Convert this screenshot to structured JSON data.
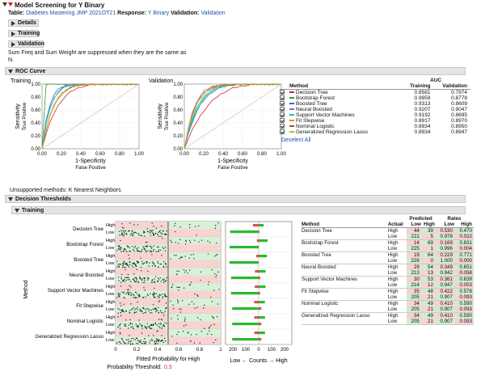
{
  "header": {
    "title": "Model Screening for Y Binary",
    "table_label": "Table:",
    "table_value": "Diabetes Mastering JMP 2021OT21",
    "response_label": "Response:",
    "response_value": "Y Binary",
    "validation_label": "Validation:",
    "validation_value": "Validation"
  },
  "outline": {
    "details": "Details",
    "training": "Training",
    "validation": "Validation",
    "note_line1": "Sum Freq and Sum Weight are suppressed when they are the same as",
    "note_line2": "N.",
    "roc_title": "ROC Curve"
  },
  "roc": {
    "training_title": "Training",
    "validation_title": "Validation",
    "ylabel_top": "Sensitivity",
    "ylabel_bottom": "True Positive",
    "xlabel_top": "1-Specificity",
    "xlabel_bottom": "False Positive",
    "ticks": [
      "0.00",
      "0.20",
      "0.40",
      "0.60",
      "0.80",
      "1.00"
    ],
    "table": {
      "col_method": "Method",
      "col_auc": "AUC",
      "col_training": "Training",
      "col_validation": "Validation",
      "rows": [
        {
          "method": "Decision Tree",
          "training": "0.8581",
          "validation": "0.7974",
          "color": "#d62728"
        },
        {
          "method": "Bootstrap Forest",
          "training": "0.9959",
          "validation": "0.8778",
          "color": "#2ca02c"
        },
        {
          "method": "Boosted Tree",
          "training": "0.9313",
          "validation": "0.8609",
          "color": "#1f77b4"
        },
        {
          "method": "Neural Boosted",
          "training": "0.9207",
          "validation": "0.9047",
          "color": "#9467bd"
        },
        {
          "method": "Support Vector Machines",
          "training": "0.9192",
          "validation": "0.8695",
          "color": "#17becf"
        },
        {
          "method": "Fit Stepwise",
          "training": "0.8917",
          "validation": "0.8970",
          "color": "#ff7f0e"
        },
        {
          "method": "Nominal Logistic",
          "training": "0.8934",
          "validation": "0.8950",
          "color": "#8c564b"
        },
        {
          "method": "Generalized Regression Lasso",
          "training": "0.8934",
          "validation": "0.8947",
          "color": "#bcbd22"
        }
      ],
      "deselect_all": "Deselect All"
    }
  },
  "unsupported": "Unsupported methods:  K Nearest Neighbors",
  "decision": {
    "title": "Decision Thresholds",
    "training": "Training",
    "method_axis": "Method",
    "fitted_label": "Fitted Probability for High",
    "threshold_label": "Probability Threshold:",
    "threshold_value": "0.5",
    "prob_ticks": [
      "0",
      "0.2",
      "0.4",
      "0.6",
      "0.8",
      "1"
    ],
    "count_ticks": [
      "200",
      "100",
      "0",
      "100",
      "200"
    ],
    "counts_label": "Low ← Counts → High",
    "high": "High",
    "low": "Low",
    "col_method": "Method",
    "col_actual": "Actual",
    "col_predicted": "Predicted",
    "col_rates": "Rates",
    "col_low": "Low",
    "col_high": "High",
    "methods": [
      {
        "name": "Decision Tree",
        "high": [
          "44",
          "39",
          "0.530",
          "0.470"
        ],
        "low": [
          "221",
          "5",
          "0.978",
          "0.022"
        ]
      },
      {
        "name": "Bootstrap Forest",
        "high": [
          "14",
          "69",
          "0.169",
          "0.831"
        ],
        "low": [
          "225",
          "1",
          "0.996",
          "0.004"
        ]
      },
      {
        "name": "Boosted Tree",
        "high": [
          "19",
          "64",
          "0.229",
          "0.771"
        ],
        "low": [
          "226",
          "0",
          "1.000",
          "0.000"
        ]
      },
      {
        "name": "Neural Boosted",
        "high": [
          "29",
          "54",
          "0.349",
          "0.651"
        ],
        "low": [
          "213",
          "13",
          "0.942",
          "0.058"
        ]
      },
      {
        "name": "Support Vector Machines",
        "high": [
          "30",
          "53",
          "0.361",
          "0.639"
        ],
        "low": [
          "214",
          "12",
          "0.947",
          "0.053"
        ]
      },
      {
        "name": "Fit Stepwise",
        "high": [
          "35",
          "48",
          "0.422",
          "0.578"
        ],
        "low": [
          "205",
          "21",
          "0.907",
          "0.093"
        ]
      },
      {
        "name": "Nominal Logistic",
        "high": [
          "34",
          "49",
          "0.410",
          "0.590"
        ],
        "low": [
          "205",
          "21",
          "0.907",
          "0.093"
        ]
      },
      {
        "name": "Generalized Regression Lasso",
        "high": [
          "34",
          "49",
          "0.410",
          "0.590"
        ],
        "low": [
          "205",
          "21",
          "0.907",
          "0.093"
        ]
      }
    ]
  }
}
